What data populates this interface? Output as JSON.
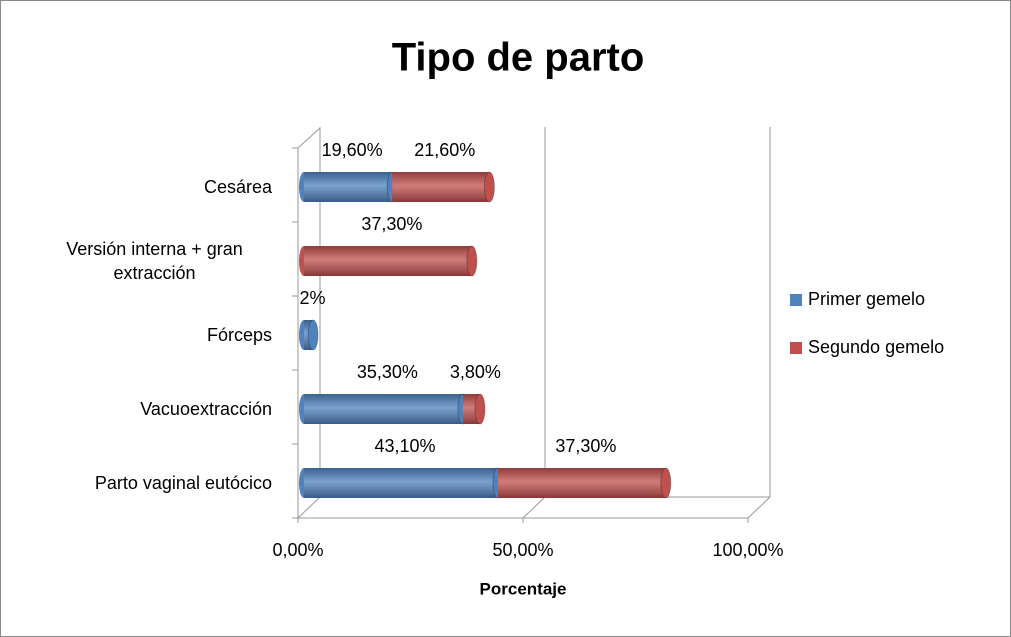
{
  "chart_data": {
    "type": "bar3d-stacked-horizontal",
    "title": "Tipo de parto",
    "x_label": "Porcentaje",
    "categories": [
      "Cesárea",
      "Versión interna + gran extracción",
      "Fórceps",
      "Vacuoextracción",
      "Parto vaginal eutócico"
    ],
    "series": [
      {
        "name": "Primer gemelo",
        "color": "#4f81bd",
        "values": [
          19.6,
          null,
          2,
          35.3,
          43.1
        ],
        "value_labels": [
          "19,60%",
          null,
          "2%",
          "35,30%",
          "43,10%"
        ]
      },
      {
        "name": "Segundo gemelo",
        "color": "#c0504d",
        "values": [
          21.6,
          37.3,
          null,
          3.8,
          37.3
        ],
        "value_labels": [
          "21,60%",
          "37,30%",
          null,
          "3,80%",
          "37,30%"
        ]
      }
    ],
    "xlim": [
      0,
      100
    ],
    "xticks": [
      {
        "value": 0,
        "label": "0,00%"
      },
      {
        "value": 50,
        "label": "50,00%"
      },
      {
        "value": 100,
        "label": "100,00%"
      }
    ],
    "grid": true,
    "legend": "right"
  }
}
